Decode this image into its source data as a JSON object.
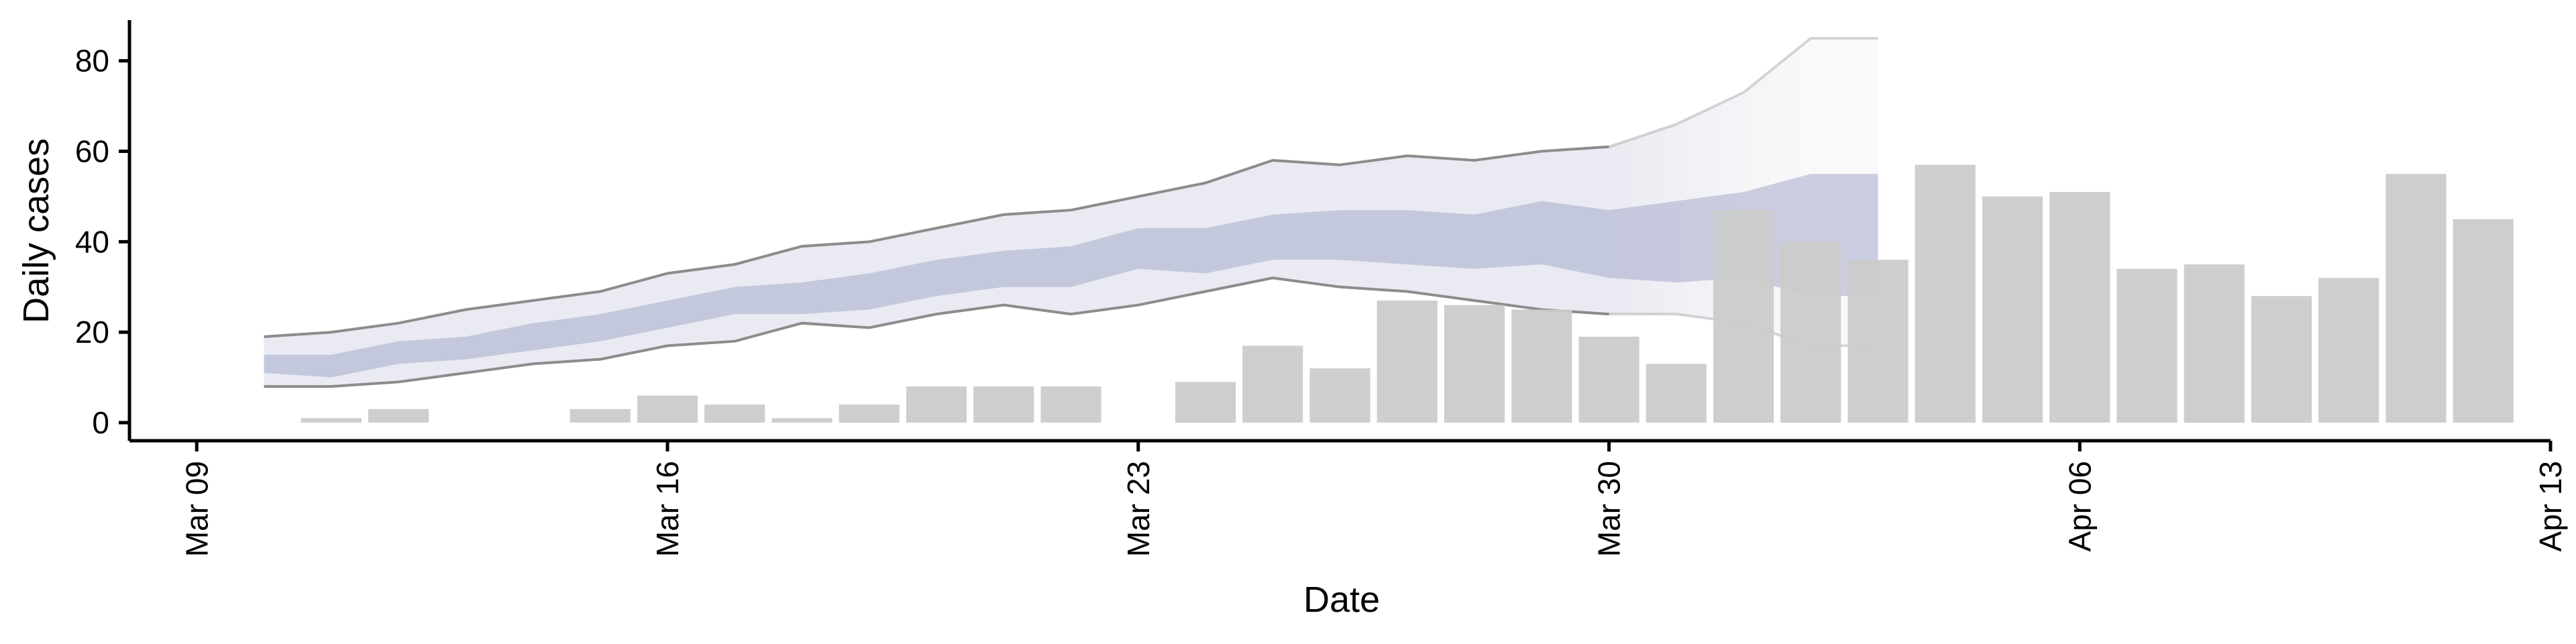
{
  "chart_data": {
    "type": "bar",
    "xlabel": "Date",
    "ylabel": "Daily cases",
    "x_ticks": [
      "Mar 09",
      "Mar 16",
      "Mar 23",
      "Mar 30",
      "Apr 06",
      "Apr 13"
    ],
    "y_ticks": [
      0,
      20,
      40,
      60,
      80
    ],
    "ylim": [
      -4,
      89
    ],
    "xlim": [
      "2020-03-08",
      "2020-04-13"
    ],
    "grid": false,
    "legend": "none",
    "colors": {
      "bars": "#cbcbcb",
      "outer_band": "#e2e3ed",
      "inner_band": "#a6abca",
      "band_border": "#8c8c8c"
    },
    "bars": [
      {
        "date": "2020-03-11",
        "value": 1
      },
      {
        "date": "2020-03-12",
        "value": 3
      },
      {
        "date": "2020-03-13",
        "value": 0
      },
      {
        "date": "2020-03-14",
        "value": 0
      },
      {
        "date": "2020-03-15",
        "value": 3
      },
      {
        "date": "2020-03-16",
        "value": 6
      },
      {
        "date": "2020-03-17",
        "value": 4
      },
      {
        "date": "2020-03-18",
        "value": 1
      },
      {
        "date": "2020-03-19",
        "value": 4
      },
      {
        "date": "2020-03-20",
        "value": 8
      },
      {
        "date": "2020-03-21",
        "value": 8
      },
      {
        "date": "2020-03-22",
        "value": 8
      },
      {
        "date": "2020-03-23",
        "value": 0
      },
      {
        "date": "2020-03-24",
        "value": 9
      },
      {
        "date": "2020-03-25",
        "value": 17
      },
      {
        "date": "2020-03-26",
        "value": 12
      },
      {
        "date": "2020-03-27",
        "value": 27
      },
      {
        "date": "2020-03-28",
        "value": 26
      },
      {
        "date": "2020-03-29",
        "value": 25
      },
      {
        "date": "2020-03-30",
        "value": 19
      },
      {
        "date": "2020-03-31",
        "value": 13
      },
      {
        "date": "2020-04-01",
        "value": 47
      },
      {
        "date": "2020-04-02",
        "value": 40
      },
      {
        "date": "2020-04-03",
        "value": 36
      },
      {
        "date": "2020-04-04",
        "value": 57
      },
      {
        "date": "2020-04-05",
        "value": 50
      },
      {
        "date": "2020-04-06",
        "value": 51
      },
      {
        "date": "2020-04-07",
        "value": 34
      },
      {
        "date": "2020-04-08",
        "value": 35
      },
      {
        "date": "2020-04-09",
        "value": 28
      },
      {
        "date": "2020-04-10",
        "value": 32
      },
      {
        "date": "2020-04-11",
        "value": 55
      },
      {
        "date": "2020-04-12",
        "value": 45
      }
    ],
    "bands": {
      "dates": [
        "2020-03-10",
        "2020-03-11",
        "2020-03-12",
        "2020-03-13",
        "2020-03-14",
        "2020-03-15",
        "2020-03-16",
        "2020-03-17",
        "2020-03-18",
        "2020-03-19",
        "2020-03-20",
        "2020-03-21",
        "2020-03-22",
        "2020-03-23",
        "2020-03-24",
        "2020-03-25",
        "2020-03-26",
        "2020-03-27",
        "2020-03-28",
        "2020-03-29",
        "2020-03-30",
        "2020-03-31",
        "2020-04-01",
        "2020-04-02",
        "2020-04-03"
      ],
      "outer_upper": [
        19,
        20,
        22,
        25,
        27,
        29,
        33,
        35,
        39,
        40,
        43,
        46,
        47,
        50,
        53,
        58,
        57,
        59,
        58,
        60,
        61,
        66,
        73,
        85,
        85
      ],
      "outer_lower": [
        8,
        8,
        9,
        11,
        13,
        14,
        17,
        18,
        22,
        21,
        24,
        26,
        24,
        26,
        29,
        32,
        30,
        29,
        27,
        25,
        24,
        24,
        22,
        17,
        17
      ],
      "inner_upper": [
        15,
        15,
        18,
        19,
        22,
        24,
        27,
        30,
        31,
        33,
        36,
        38,
        39,
        43,
        43,
        46,
        47,
        47,
        46,
        49,
        47,
        49,
        51,
        55,
        55
      ],
      "inner_lower": [
        11,
        10,
        13,
        14,
        16,
        18,
        21,
        24,
        24,
        25,
        28,
        30,
        30,
        34,
        33,
        36,
        36,
        35,
        34,
        35,
        32,
        31,
        32,
        28,
        28
      ],
      "projection_start": "2020-03-30"
    }
  }
}
